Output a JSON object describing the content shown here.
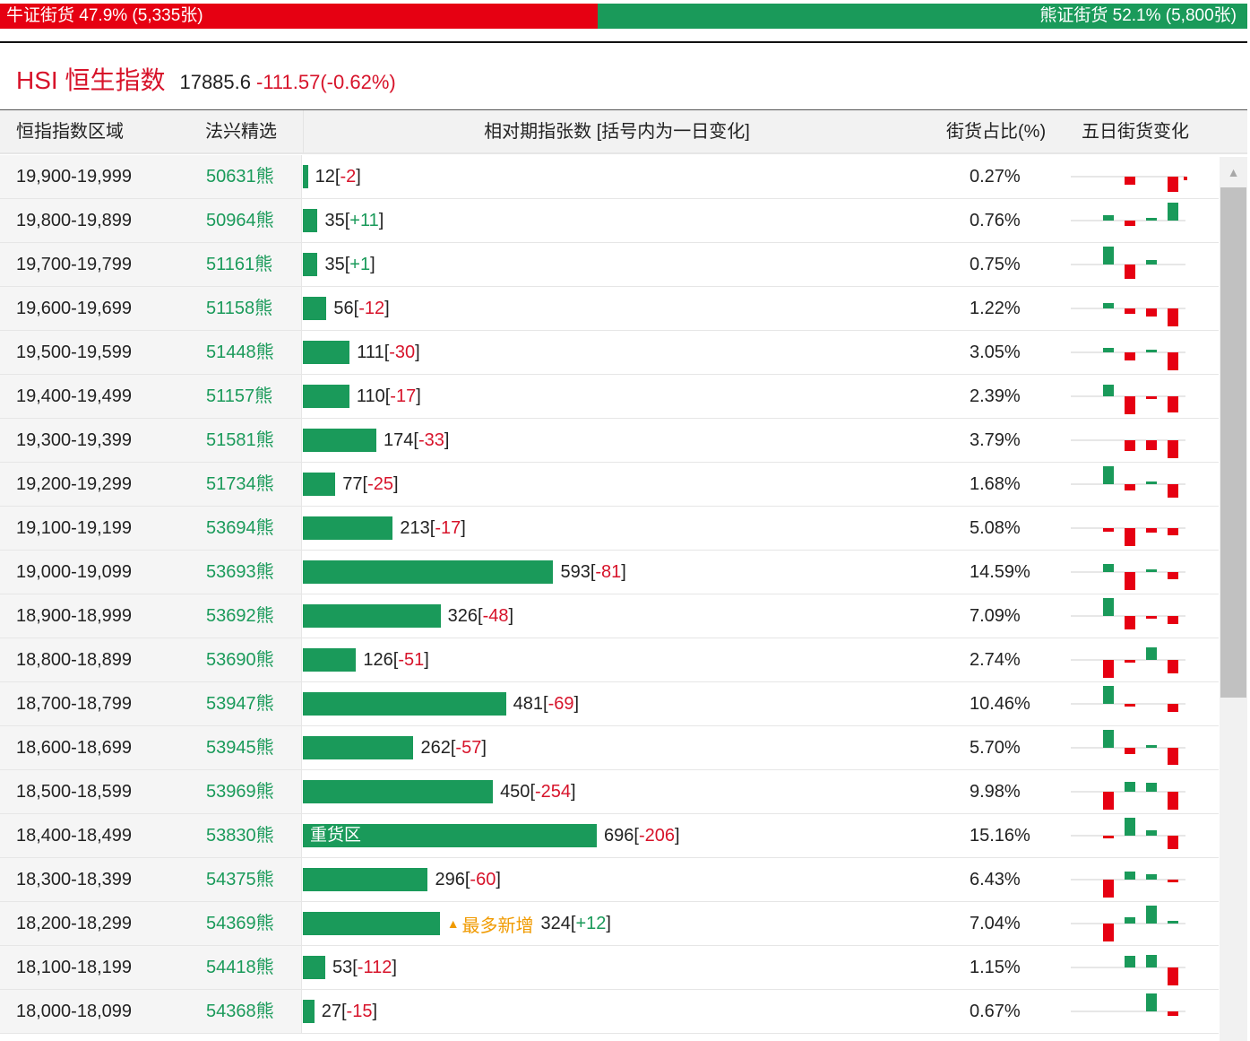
{
  "sentiment": {
    "bull_label": "牛证街货 47.9% (5,335张)",
    "bull_share": 0.479,
    "bear_label": "熊证街货 52.1% (5,800张)",
    "bear_share": 0.521
  },
  "index": {
    "name": "HSI 恒生指数",
    "price": "17885.6",
    "change": "-111.57(-0.62%)"
  },
  "table": {
    "headers": {
      "range": "恒指指数区域",
      "issuer": "法兴精选",
      "contracts": "相对期指张数 [括号内为一日变化]",
      "share": "街货占比(%)",
      "five_day": "五日街货变化"
    },
    "max_contracts": 696,
    "rows": [
      {
        "range": "19,900-19,999",
        "code": "50631熊",
        "contracts": 12,
        "count": "12",
        "delta": "-2",
        "pct": "0.27%",
        "spark": [
          0,
          -0.45,
          0,
          -0.85,
          -0.2
        ]
      },
      {
        "range": "19,800-19,899",
        "code": "50964熊",
        "contracts": 35,
        "count": "35",
        "delta": "+11",
        "pct": "0.76%",
        "spark": [
          0.3,
          -0.3,
          0.15,
          1,
          0
        ]
      },
      {
        "range": "19,700-19,799",
        "code": "51161熊",
        "contracts": 35,
        "count": "35",
        "delta": "+1",
        "pct": "0.75%",
        "spark": [
          1,
          -0.8,
          0.25,
          0,
          0
        ]
      },
      {
        "range": "19,600-19,699",
        "code": "51158熊",
        "contracts": 56,
        "count": "56",
        "delta": "-12",
        "pct": "1.22%",
        "spark": [
          0.3,
          -0.3,
          -0.45,
          -1,
          0
        ]
      },
      {
        "range": "19,500-19,599",
        "code": "51448熊",
        "contracts": 111,
        "count": "111",
        "delta": "-30",
        "pct": "3.05%",
        "spark": [
          0.25,
          -0.45,
          0.1,
          -1,
          0
        ]
      },
      {
        "range": "19,400-19,499",
        "code": "51157熊",
        "contracts": 110,
        "count": "110",
        "delta": "-17",
        "pct": "2.39%",
        "spark": [
          0.65,
          -1,
          -0.15,
          -0.9,
          0
        ]
      },
      {
        "range": "19,300-19,399",
        "code": "51581熊",
        "contracts": 174,
        "count": "174",
        "delta": "-33",
        "pct": "3.79%",
        "spark": [
          0,
          -0.6,
          -0.55,
          -1,
          0
        ]
      },
      {
        "range": "19,200-19,299",
        "code": "51734熊",
        "contracts": 77,
        "count": "77",
        "delta": "-25",
        "pct": "1.68%",
        "spark": [
          1,
          -0.35,
          0.05,
          -0.75,
          0
        ]
      },
      {
        "range": "19,100-19,199",
        "code": "53694熊",
        "contracts": 213,
        "count": "213",
        "delta": "-17",
        "pct": "5.08%",
        "spark": [
          -0.2,
          -1,
          -0.25,
          -0.4,
          0
        ]
      },
      {
        "range": "19,000-19,099",
        "code": "53693熊",
        "contracts": 593,
        "count": "593",
        "delta": "-81",
        "pct": "14.59%",
        "spark": [
          0.45,
          -1,
          0.05,
          -0.4,
          0
        ]
      },
      {
        "range": "18,900-18,999",
        "code": "53692熊",
        "contracts": 326,
        "count": "326",
        "delta": "-48",
        "pct": "7.09%",
        "spark": [
          1,
          -0.75,
          -0.15,
          -0.45,
          0
        ]
      },
      {
        "range": "18,800-18,899",
        "code": "53690熊",
        "contracts": 126,
        "count": "126",
        "delta": "-51",
        "pct": "2.74%",
        "spark": [
          -1,
          -0.15,
          0.7,
          -0.75,
          0
        ]
      },
      {
        "range": "18,700-18,799",
        "code": "53947熊",
        "contracts": 481,
        "count": "481",
        "delta": "-69",
        "pct": "10.46%",
        "spark": [
          1,
          -0.1,
          0,
          -0.45,
          0
        ]
      },
      {
        "range": "18,600-18,699",
        "code": "53945熊",
        "contracts": 262,
        "count": "262",
        "delta": "-57",
        "pct": "5.70%",
        "spark": [
          1,
          -0.35,
          0.15,
          -0.95,
          0
        ]
      },
      {
        "range": "18,500-18,599",
        "code": "53969熊",
        "contracts": 450,
        "count": "450",
        "delta": "-254",
        "pct": "9.98%",
        "spark": [
          -1,
          0.55,
          0.5,
          -1,
          0
        ]
      },
      {
        "range": "18,400-18,499",
        "code": "53830熊",
        "contracts": 696,
        "count": "696",
        "delta": "-206",
        "pct": "15.16%",
        "bar_label": "重货区",
        "spark": [
          -0.15,
          1,
          0.3,
          -0.75,
          0
        ]
      },
      {
        "range": "18,300-18,399",
        "code": "54375熊",
        "contracts": 296,
        "count": "296",
        "delta": "-60",
        "pct": "6.43%",
        "spark": [
          -1,
          0.45,
          0.3,
          -0.1,
          0
        ]
      },
      {
        "range": "18,200-18,299",
        "code": "54369熊",
        "contracts": 324,
        "count": "324",
        "delta": "+12",
        "pct": "7.04%",
        "badge": "最多新增",
        "spark": [
          -1,
          0.35,
          1,
          0.05,
          0
        ]
      },
      {
        "range": "18,100-18,199",
        "code": "54418熊",
        "contracts": 53,
        "count": "53",
        "delta": "-112",
        "pct": "1.15%",
        "spark": [
          0,
          0.65,
          0.7,
          -1,
          0
        ]
      },
      {
        "range": "18,000-18,099",
        "code": "54368熊",
        "contracts": 27,
        "count": "27",
        "delta": "-15",
        "pct": "0.67%",
        "spark": [
          0,
          0,
          1,
          -0.25,
          0
        ]
      }
    ]
  },
  "colors": {
    "up": "#1a9a5a",
    "down": "#e60012",
    "bull": "#e60012",
    "bear": "#1a9a5a",
    "badge": "#f09a00"
  },
  "scrollbar": {
    "icon": "arrow-up-icon"
  }
}
